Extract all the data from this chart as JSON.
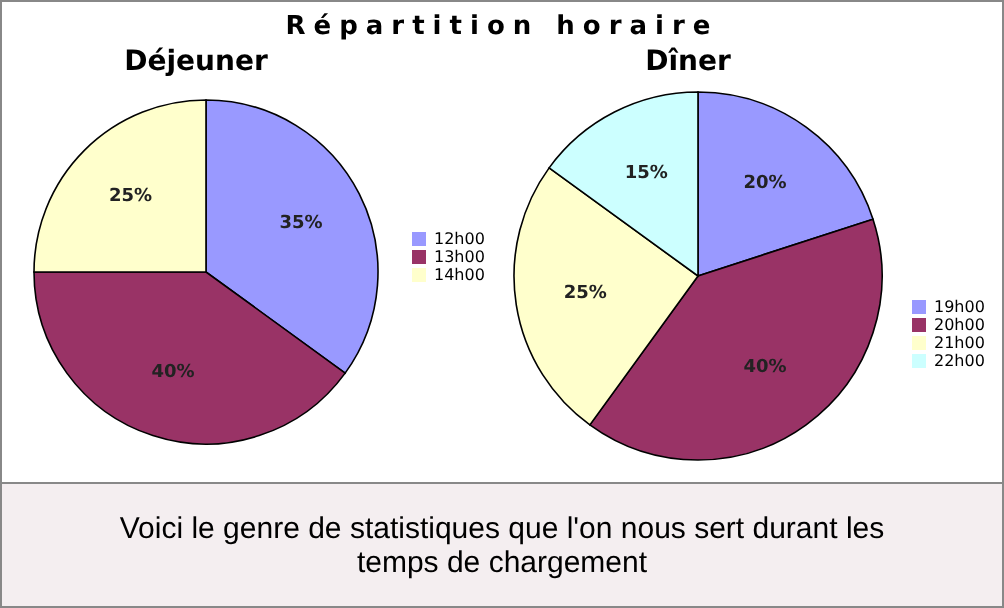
{
  "chart_data": [
    {
      "type": "pie",
      "title": "Répartition horaire",
      "subtitle": "Déjeuner",
      "categories": [
        "12h00",
        "13h00",
        "14h00"
      ],
      "values": [
        35,
        40,
        25
      ],
      "value_labels": [
        "35%",
        "40%",
        "25%"
      ],
      "colors": [
        "#9999ff",
        "#993366",
        "#ffffcc"
      ],
      "legend": "right"
    },
    {
      "type": "pie",
      "title": "Dîner",
      "categories": [
        "19h00",
        "20h00",
        "21h00",
        "22h00"
      ],
      "values": [
        20,
        40,
        25,
        15
      ],
      "value_labels": [
        "20%",
        "40%",
        "25%",
        "15%"
      ],
      "colors": [
        "#9999ff",
        "#993366",
        "#ffffcc",
        "#ccffff"
      ],
      "legend": "right",
      "annotations": [
        "Voici le genre de statistiques que l'on nous sert durant les temps de chargement"
      ]
    }
  ]
}
